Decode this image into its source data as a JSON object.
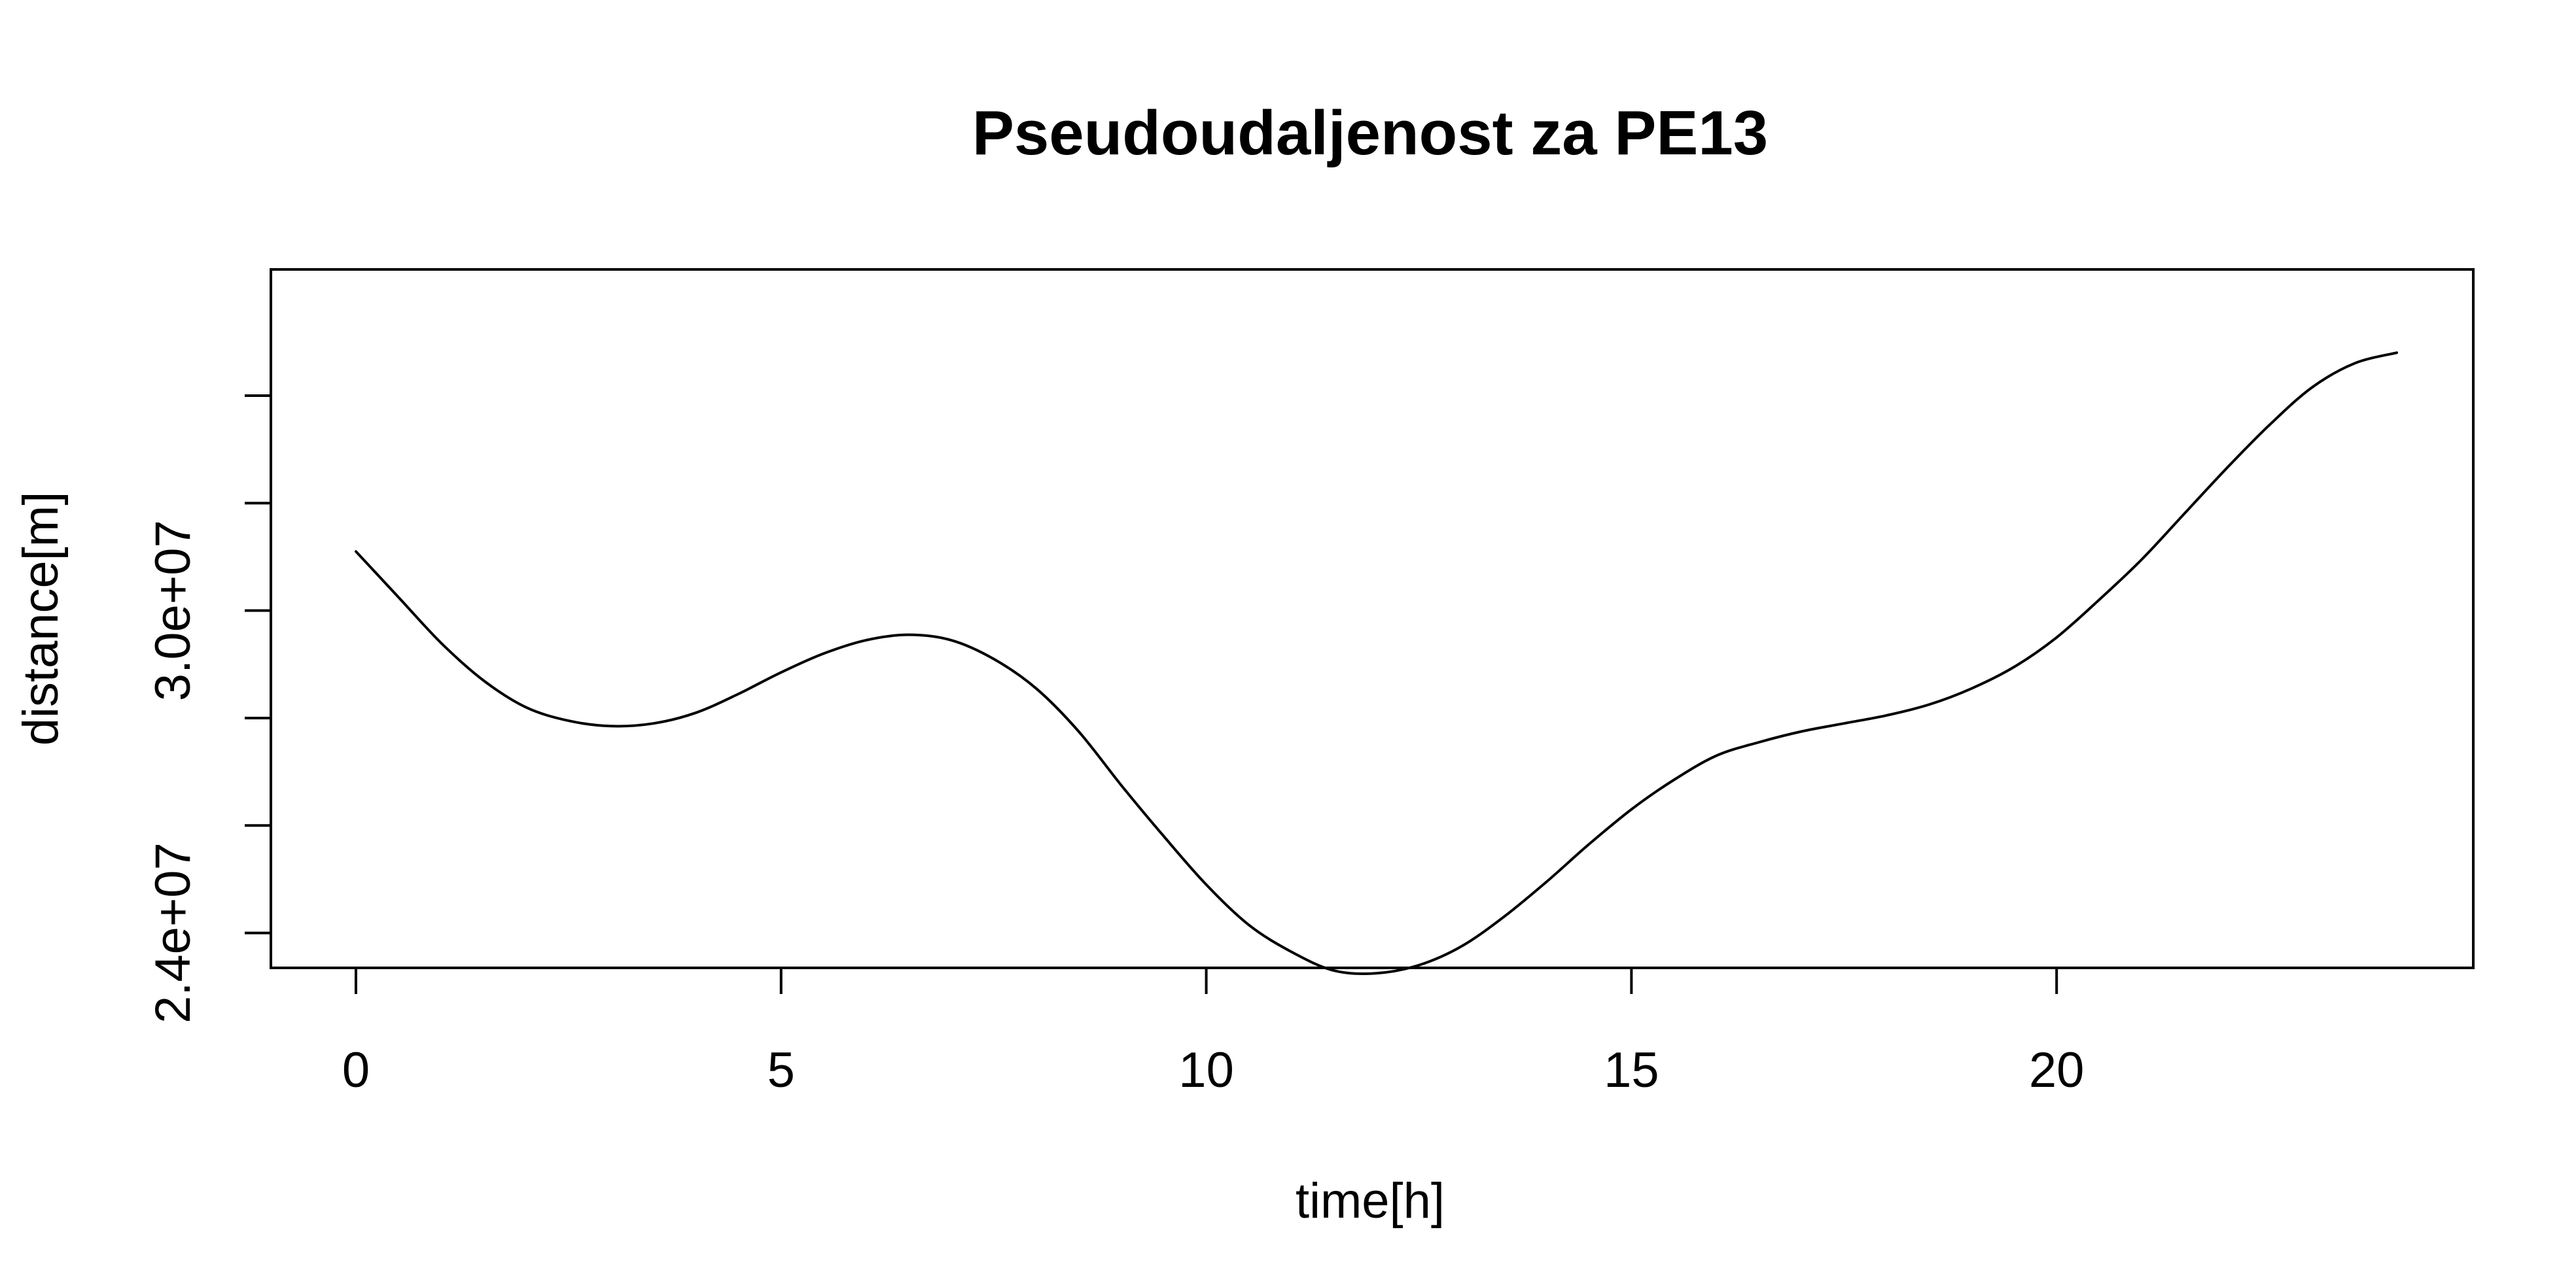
{
  "chart_data": {
    "type": "line",
    "title": "Pseudoudaljenost za PE13",
    "xlabel": "time[h]",
    "ylabel": "distance[m]",
    "xlim": [
      -1,
      24.9
    ],
    "ylim": [
      23350000,
      36350000
    ],
    "x_ticks": [
      0,
      5,
      10,
      15,
      20
    ],
    "x_tick_labels": [
      "0",
      "5",
      "10",
      "15",
      "20"
    ],
    "y_ticks": [
      24000000,
      26000000,
      28000000,
      30000000,
      32000000,
      34000000
    ],
    "y_tick_labels": [
      "2.4e+07",
      "",
      "",
      "3.0e+07",
      "",
      ""
    ],
    "grid": false,
    "legend": "none",
    "line_color": "#000000",
    "series": [
      {
        "x": [
          0,
          0.5,
          1,
          1.5,
          2,
          2.5,
          3,
          3.5,
          4,
          4.5,
          5,
          5.5,
          6,
          6.5,
          7,
          7.5,
          8,
          8.5,
          9,
          9.5,
          10,
          10.5,
          11,
          11.5,
          12,
          12.5,
          13,
          13.5,
          14,
          14.5,
          15,
          15.5,
          16,
          16.5,
          17,
          17.5,
          18,
          18.5,
          19,
          19.5,
          20,
          20.5,
          21,
          21.5,
          22,
          22.5,
          23,
          23.5,
          24
        ],
        "y": [
          31100000,
          30250000,
          29400000,
          28700000,
          28200000,
          27950000,
          27850000,
          27900000,
          28100000,
          28450000,
          28850000,
          29200000,
          29450000,
          29550000,
          29450000,
          29100000,
          28550000,
          27750000,
          26750000,
          25800000,
          24900000,
          24150000,
          23650000,
          23300000,
          23250000,
          23400000,
          23750000,
          24300000,
          24950000,
          25650000,
          26300000,
          26850000,
          27300000,
          27550000,
          27750000,
          27900000,
          28050000,
          28250000,
          28550000,
          28950000,
          29500000,
          30200000,
          30950000,
          31800000,
          32650000,
          33450000,
          34150000,
          34600000,
          34800000
        ]
      }
    ]
  }
}
